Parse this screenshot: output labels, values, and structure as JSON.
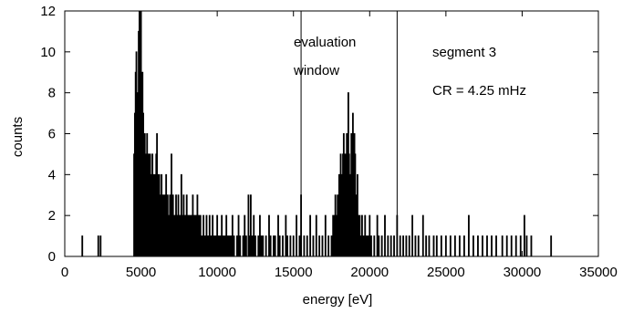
{
  "chart_data": {
    "type": "histogram",
    "title": "",
    "xlabel": "energy [eV]",
    "ylabel": "counts",
    "xlim": [
      0,
      35000
    ],
    "ylim": [
      0,
      12
    ],
    "xticks": [
      0,
      5000,
      10000,
      15000,
      20000,
      25000,
      30000,
      35000
    ],
    "yticks": [
      0,
      2,
      4,
      6,
      8,
      10,
      12
    ],
    "grid": false,
    "bin_width_eV": 50,
    "series": [
      {
        "bins": [
          [
            1150,
            1
          ],
          [
            2200,
            1
          ],
          [
            2350,
            1
          ],
          [
            4550,
            5
          ],
          [
            4600,
            7
          ],
          [
            4650,
            9
          ],
          [
            4700,
            10
          ],
          [
            4750,
            8
          ],
          [
            4800,
            6
          ],
          [
            4850,
            11
          ],
          [
            4900,
            12
          ],
          [
            4950,
            10
          ],
          [
            5000,
            12
          ],
          [
            5050,
            8
          ],
          [
            5100,
            9
          ],
          [
            5150,
            7
          ],
          [
            5200,
            5
          ],
          [
            5250,
            6
          ],
          [
            5300,
            4
          ],
          [
            5350,
            5
          ],
          [
            5400,
            6
          ],
          [
            5450,
            4
          ],
          [
            5500,
            5
          ],
          [
            5550,
            3
          ],
          [
            5600,
            5
          ],
          [
            5650,
            4
          ],
          [
            5700,
            3
          ],
          [
            5750,
            5
          ],
          [
            5800,
            4
          ],
          [
            5850,
            3
          ],
          [
            5900,
            4
          ],
          [
            5950,
            3
          ],
          [
            6000,
            5
          ],
          [
            6050,
            6
          ],
          [
            6100,
            4
          ],
          [
            6150,
            3
          ],
          [
            6200,
            4
          ],
          [
            6250,
            2
          ],
          [
            6300,
            3
          ],
          [
            6350,
            4
          ],
          [
            6400,
            2
          ],
          [
            6450,
            3
          ],
          [
            6500,
            2
          ],
          [
            6550,
            3
          ],
          [
            6600,
            2
          ],
          [
            6650,
            4
          ],
          [
            6700,
            2
          ],
          [
            6750,
            3
          ],
          [
            6800,
            2
          ],
          [
            6850,
            1
          ],
          [
            6900,
            3
          ],
          [
            6950,
            2
          ],
          [
            7000,
            5
          ],
          [
            7050,
            2
          ],
          [
            7100,
            3
          ],
          [
            7150,
            2
          ],
          [
            7200,
            1
          ],
          [
            7250,
            2
          ],
          [
            7300,
            3
          ],
          [
            7350,
            1
          ],
          [
            7400,
            2
          ],
          [
            7450,
            3
          ],
          [
            7500,
            2
          ],
          [
            7550,
            1
          ],
          [
            7600,
            2
          ],
          [
            7650,
            4
          ],
          [
            7700,
            1
          ],
          [
            7750,
            2
          ],
          [
            7800,
            3
          ],
          [
            7850,
            1
          ],
          [
            7900,
            2
          ],
          [
            7950,
            1
          ],
          [
            8000,
            3
          ],
          [
            8050,
            1
          ],
          [
            8100,
            2
          ],
          [
            8150,
            1
          ],
          [
            8200,
            2
          ],
          [
            8250,
            1
          ],
          [
            8300,
            2
          ],
          [
            8350,
            1
          ],
          [
            8400,
            3
          ],
          [
            8450,
            1
          ],
          [
            8500,
            2
          ],
          [
            8550,
            1
          ],
          [
            8600,
            2
          ],
          [
            8650,
            1
          ],
          [
            8700,
            3
          ],
          [
            8750,
            1
          ],
          [
            8800,
            2
          ],
          [
            8850,
            1
          ],
          [
            8900,
            2
          ],
          [
            8950,
            1
          ],
          [
            9000,
            1
          ],
          [
            9100,
            2
          ],
          [
            9150,
            1
          ],
          [
            9250,
            1
          ],
          [
            9300,
            2
          ],
          [
            9400,
            1
          ],
          [
            9500,
            2
          ],
          [
            9550,
            1
          ],
          [
            9650,
            1
          ],
          [
            9700,
            2
          ],
          [
            9800,
            1
          ],
          [
            9900,
            1
          ],
          [
            10000,
            2
          ],
          [
            10100,
            1
          ],
          [
            10200,
            1
          ],
          [
            10300,
            2
          ],
          [
            10400,
            1
          ],
          [
            10500,
            1
          ],
          [
            10600,
            2
          ],
          [
            10700,
            1
          ],
          [
            10800,
            1
          ],
          [
            10900,
            1
          ],
          [
            11000,
            2
          ],
          [
            11100,
            1
          ],
          [
            11300,
            1
          ],
          [
            11400,
            2
          ],
          [
            11500,
            1
          ],
          [
            11700,
            1
          ],
          [
            11800,
            2
          ],
          [
            11900,
            1
          ],
          [
            12050,
            3
          ],
          [
            12100,
            1
          ],
          [
            12200,
            3
          ],
          [
            12300,
            1
          ],
          [
            12400,
            2
          ],
          [
            12500,
            1
          ],
          [
            12700,
            1
          ],
          [
            12800,
            2
          ],
          [
            12900,
            1
          ],
          [
            13000,
            1
          ],
          [
            13200,
            1
          ],
          [
            13400,
            2
          ],
          [
            13500,
            1
          ],
          [
            13700,
            1
          ],
          [
            13800,
            1
          ],
          [
            14000,
            2
          ],
          [
            14100,
            1
          ],
          [
            14300,
            1
          ],
          [
            14500,
            2
          ],
          [
            14600,
            1
          ],
          [
            14800,
            1
          ],
          [
            15000,
            1
          ],
          [
            15200,
            2
          ],
          [
            15400,
            1
          ],
          [
            15500,
            3
          ],
          [
            15700,
            1
          ],
          [
            15900,
            1
          ],
          [
            16100,
            2
          ],
          [
            16300,
            1
          ],
          [
            16500,
            2
          ],
          [
            16700,
            1
          ],
          [
            16900,
            1
          ],
          [
            17100,
            2
          ],
          [
            17300,
            1
          ],
          [
            17500,
            1
          ],
          [
            17600,
            2
          ],
          [
            17700,
            2
          ],
          [
            17750,
            3
          ],
          [
            17800,
            1
          ],
          [
            17850,
            2
          ],
          [
            17900,
            3
          ],
          [
            17950,
            2
          ],
          [
            18000,
            4
          ],
          [
            18050,
            3
          ],
          [
            18100,
            5
          ],
          [
            18150,
            4
          ],
          [
            18200,
            3
          ],
          [
            18250,
            5
          ],
          [
            18300,
            6
          ],
          [
            18350,
            4
          ],
          [
            18400,
            5
          ],
          [
            18450,
            3
          ],
          [
            18500,
            6
          ],
          [
            18550,
            4
          ],
          [
            18600,
            8
          ],
          [
            18650,
            5
          ],
          [
            18700,
            4
          ],
          [
            18750,
            3
          ],
          [
            18800,
            6
          ],
          [
            18850,
            5
          ],
          [
            18900,
            7
          ],
          [
            18950,
            4
          ],
          [
            19000,
            6
          ],
          [
            19050,
            5
          ],
          [
            19100,
            3
          ],
          [
            19150,
            2
          ],
          [
            19200,
            4
          ],
          [
            19250,
            2
          ],
          [
            19300,
            1
          ],
          [
            19350,
            2
          ],
          [
            19400,
            1
          ],
          [
            19500,
            2
          ],
          [
            19600,
            1
          ],
          [
            19700,
            2
          ],
          [
            19800,
            1
          ],
          [
            19900,
            1
          ],
          [
            20000,
            2
          ],
          [
            20100,
            1
          ],
          [
            20300,
            1
          ],
          [
            20500,
            2
          ],
          [
            20600,
            1
          ],
          [
            20800,
            1
          ],
          [
            21000,
            2
          ],
          [
            21200,
            1
          ],
          [
            21400,
            1
          ],
          [
            21600,
            1
          ],
          [
            21800,
            2
          ],
          [
            22000,
            1
          ],
          [
            22200,
            1
          ],
          [
            22400,
            1
          ],
          [
            22600,
            1
          ],
          [
            22800,
            2
          ],
          [
            23000,
            1
          ],
          [
            23200,
            1
          ],
          [
            23500,
            2
          ],
          [
            23700,
            1
          ],
          [
            23900,
            1
          ],
          [
            24200,
            1
          ],
          [
            24400,
            1
          ],
          [
            24700,
            1
          ],
          [
            25000,
            1
          ],
          [
            25300,
            1
          ],
          [
            25600,
            1
          ],
          [
            25900,
            1
          ],
          [
            26200,
            1
          ],
          [
            26500,
            2
          ],
          [
            26800,
            1
          ],
          [
            27100,
            1
          ],
          [
            27400,
            1
          ],
          [
            27700,
            1
          ],
          [
            28000,
            1
          ],
          [
            28300,
            1
          ],
          [
            28700,
            1
          ],
          [
            29000,
            1
          ],
          [
            29300,
            1
          ],
          [
            29600,
            1
          ],
          [
            29900,
            1
          ],
          [
            30150,
            2
          ],
          [
            30300,
            1
          ],
          [
            30600,
            1
          ],
          [
            31900,
            1
          ]
        ]
      }
    ],
    "markers": [
      {
        "x": 15500
      },
      {
        "x": 21800
      }
    ],
    "annotations": [
      {
        "text": "evaluation"
      },
      {
        "text": "window"
      },
      {
        "text": "segment 3"
      },
      {
        "text": "CR = 4.25 mHz"
      }
    ]
  }
}
